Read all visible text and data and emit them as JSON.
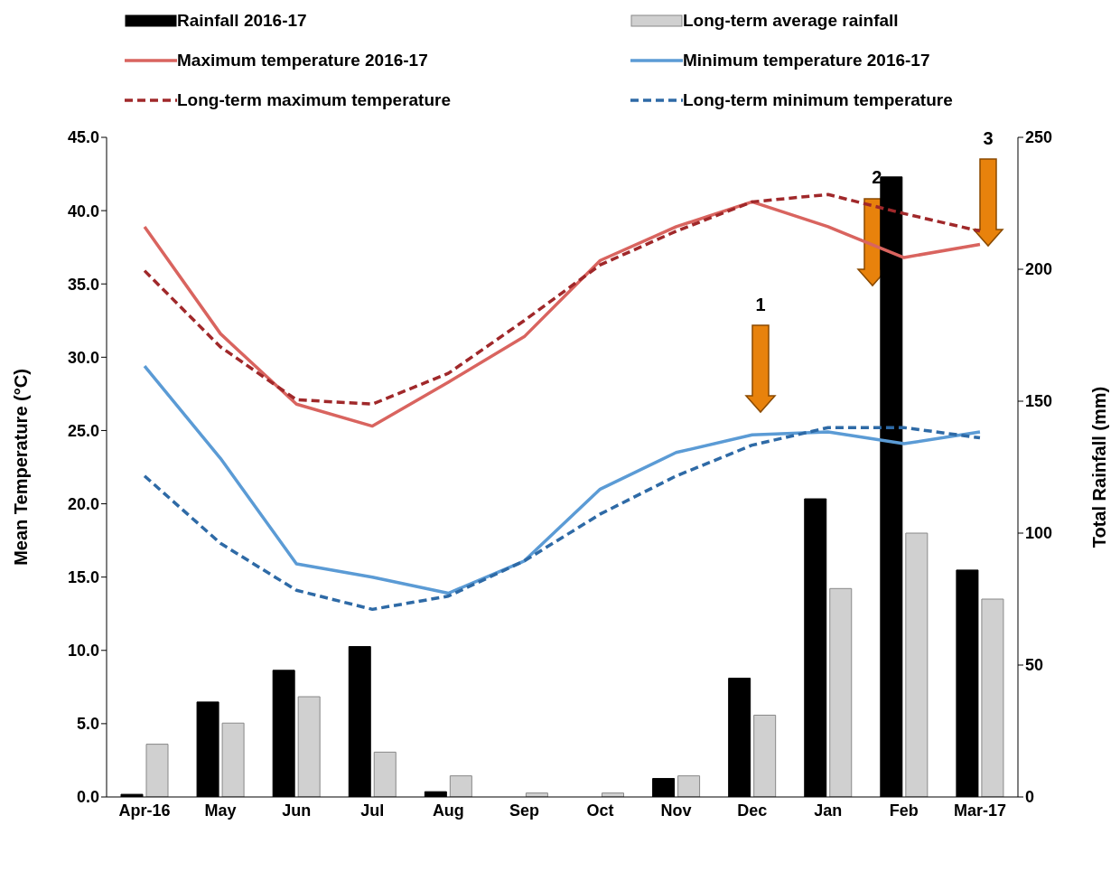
{
  "chart_data": {
    "type": "line",
    "categories": [
      "Apr-16",
      "May",
      "Jun",
      "Jul",
      "Aug",
      "Sep",
      "Oct",
      "Nov",
      "Dec",
      "Jan",
      "Feb",
      "Mar-17"
    ],
    "ylabel": "Mean Temperature (°C)",
    "y2label": "Total Rainfall (mm)",
    "ylim": [
      0,
      45
    ],
    "yticks": [
      {
        "value": 0,
        "label": "0.0"
      },
      {
        "value": 5,
        "label": "5.0"
      },
      {
        "value": 10,
        "label": "10.0"
      },
      {
        "value": 15,
        "label": "15.0"
      },
      {
        "value": 20,
        "label": "20.0"
      },
      {
        "value": 25,
        "label": "25.0"
      },
      {
        "value": 30,
        "label": "30.0"
      },
      {
        "value": 35,
        "label": "35.0"
      },
      {
        "value": 40,
        "label": "40.0"
      },
      {
        "value": 45,
        "label": "45.0"
      }
    ],
    "y2lim": [
      0,
      250
    ],
    "y2ticks": [
      0,
      50,
      100,
      150,
      200,
      250
    ],
    "grid": false,
    "legend": "top",
    "marker": "none",
    "series": [
      {
        "name": "Rainfall 2016-17",
        "type": "bar",
        "axis": "y2",
        "color": "#000000",
        "values": [
          1,
          36,
          48,
          57,
          2,
          0,
          0,
          7,
          45,
          113,
          235,
          86
        ]
      },
      {
        "name": "Long-term average rainfall",
        "type": "bar",
        "axis": "y2",
        "color": "#d0d0d0",
        "values": [
          20,
          28,
          38,
          17,
          8,
          1.5,
          1.5,
          8,
          31,
          79,
          100,
          75
        ]
      },
      {
        "name": "Maximum temperature 2016-17",
        "line_style": "solid",
        "color": "#d9645f",
        "values": [
          38.9,
          31.6,
          26.8,
          25.3,
          28.3,
          31.4,
          36.6,
          38.9,
          40.6,
          38.9,
          36.8,
          37.7
        ]
      },
      {
        "name": "Minimum temperature 2016-17",
        "line_style": "solid",
        "color": "#5b9bd5",
        "values": [
          29.4,
          23.1,
          15.9,
          15.0,
          13.9,
          16.1,
          21.0,
          23.5,
          24.7,
          24.9,
          24.1,
          24.9
        ]
      },
      {
        "name": "Long-term maximum temperature",
        "line_style": "dashed",
        "color": "#a0282a",
        "values": [
          35.9,
          30.7,
          27.1,
          26.8,
          28.9,
          32.5,
          36.3,
          38.6,
          40.6,
          41.1,
          39.8,
          38.6
        ]
      },
      {
        "name": "Long-term minimum temperature",
        "line_style": "dashed",
        "color": "#2e6aa6",
        "values": [
          21.9,
          17.3,
          14.1,
          12.8,
          13.7,
          16.1,
          19.3,
          21.9,
          24.0,
          25.2,
          25.2,
          24.5
        ]
      }
    ],
    "annotations": [
      "1",
      {
        "text": "2",
        "x": "Feb",
        "y": 42.2
      },
      "3"
    ]
  }
}
